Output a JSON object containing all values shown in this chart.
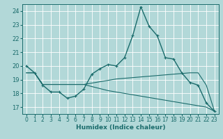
{
  "xlabel": "Humidex (Indice chaleur)",
  "bg_color": "#b2d8d8",
  "line_color": "#1a6b6b",
  "grid_color": "#ffffff",
  "xlim": [
    -0.5,
    23.5
  ],
  "ylim": [
    16.5,
    24.5
  ],
  "yticks": [
    17,
    18,
    19,
    20,
    21,
    22,
    23,
    24
  ],
  "xticks": [
    0,
    1,
    2,
    3,
    4,
    5,
    6,
    7,
    8,
    9,
    10,
    11,
    12,
    13,
    14,
    15,
    16,
    17,
    18,
    19,
    20,
    21,
    22,
    23
  ],
  "line1_x": [
    0,
    1,
    2,
    3,
    4,
    5,
    6,
    7,
    8,
    9,
    10,
    11,
    12,
    13,
    14,
    15,
    16,
    17,
    18,
    19,
    20,
    21,
    22,
    23
  ],
  "line1_y": [
    20.0,
    19.5,
    18.6,
    18.1,
    18.1,
    17.65,
    17.8,
    18.3,
    19.4,
    19.8,
    20.1,
    20.0,
    20.6,
    22.2,
    24.3,
    22.9,
    22.2,
    20.6,
    20.5,
    19.5,
    18.8,
    18.6,
    17.3,
    16.7
  ],
  "line2_x": [
    0,
    1,
    2,
    3,
    4,
    5,
    6,
    7,
    8,
    9,
    10,
    11,
    12,
    13,
    14,
    15,
    16,
    17,
    18,
    19,
    20,
    21,
    22,
    23
  ],
  "line2_y": [
    19.5,
    19.5,
    18.65,
    18.65,
    18.65,
    18.65,
    18.65,
    18.65,
    18.75,
    18.85,
    18.95,
    19.05,
    19.1,
    19.15,
    19.2,
    19.25,
    19.3,
    19.35,
    19.4,
    19.45,
    19.5,
    19.5,
    18.6,
    16.7
  ],
  "line3_x": [
    0,
    1,
    2,
    3,
    4,
    5,
    6,
    7,
    8,
    9,
    10,
    11,
    12,
    13,
    14,
    15,
    16,
    17,
    18,
    19,
    20,
    21,
    22,
    23
  ],
  "line3_y": [
    19.5,
    19.5,
    18.65,
    18.65,
    18.65,
    18.65,
    18.65,
    18.65,
    18.5,
    18.35,
    18.2,
    18.1,
    18.0,
    17.9,
    17.8,
    17.7,
    17.6,
    17.5,
    17.4,
    17.3,
    17.2,
    17.1,
    17.0,
    16.7
  ]
}
